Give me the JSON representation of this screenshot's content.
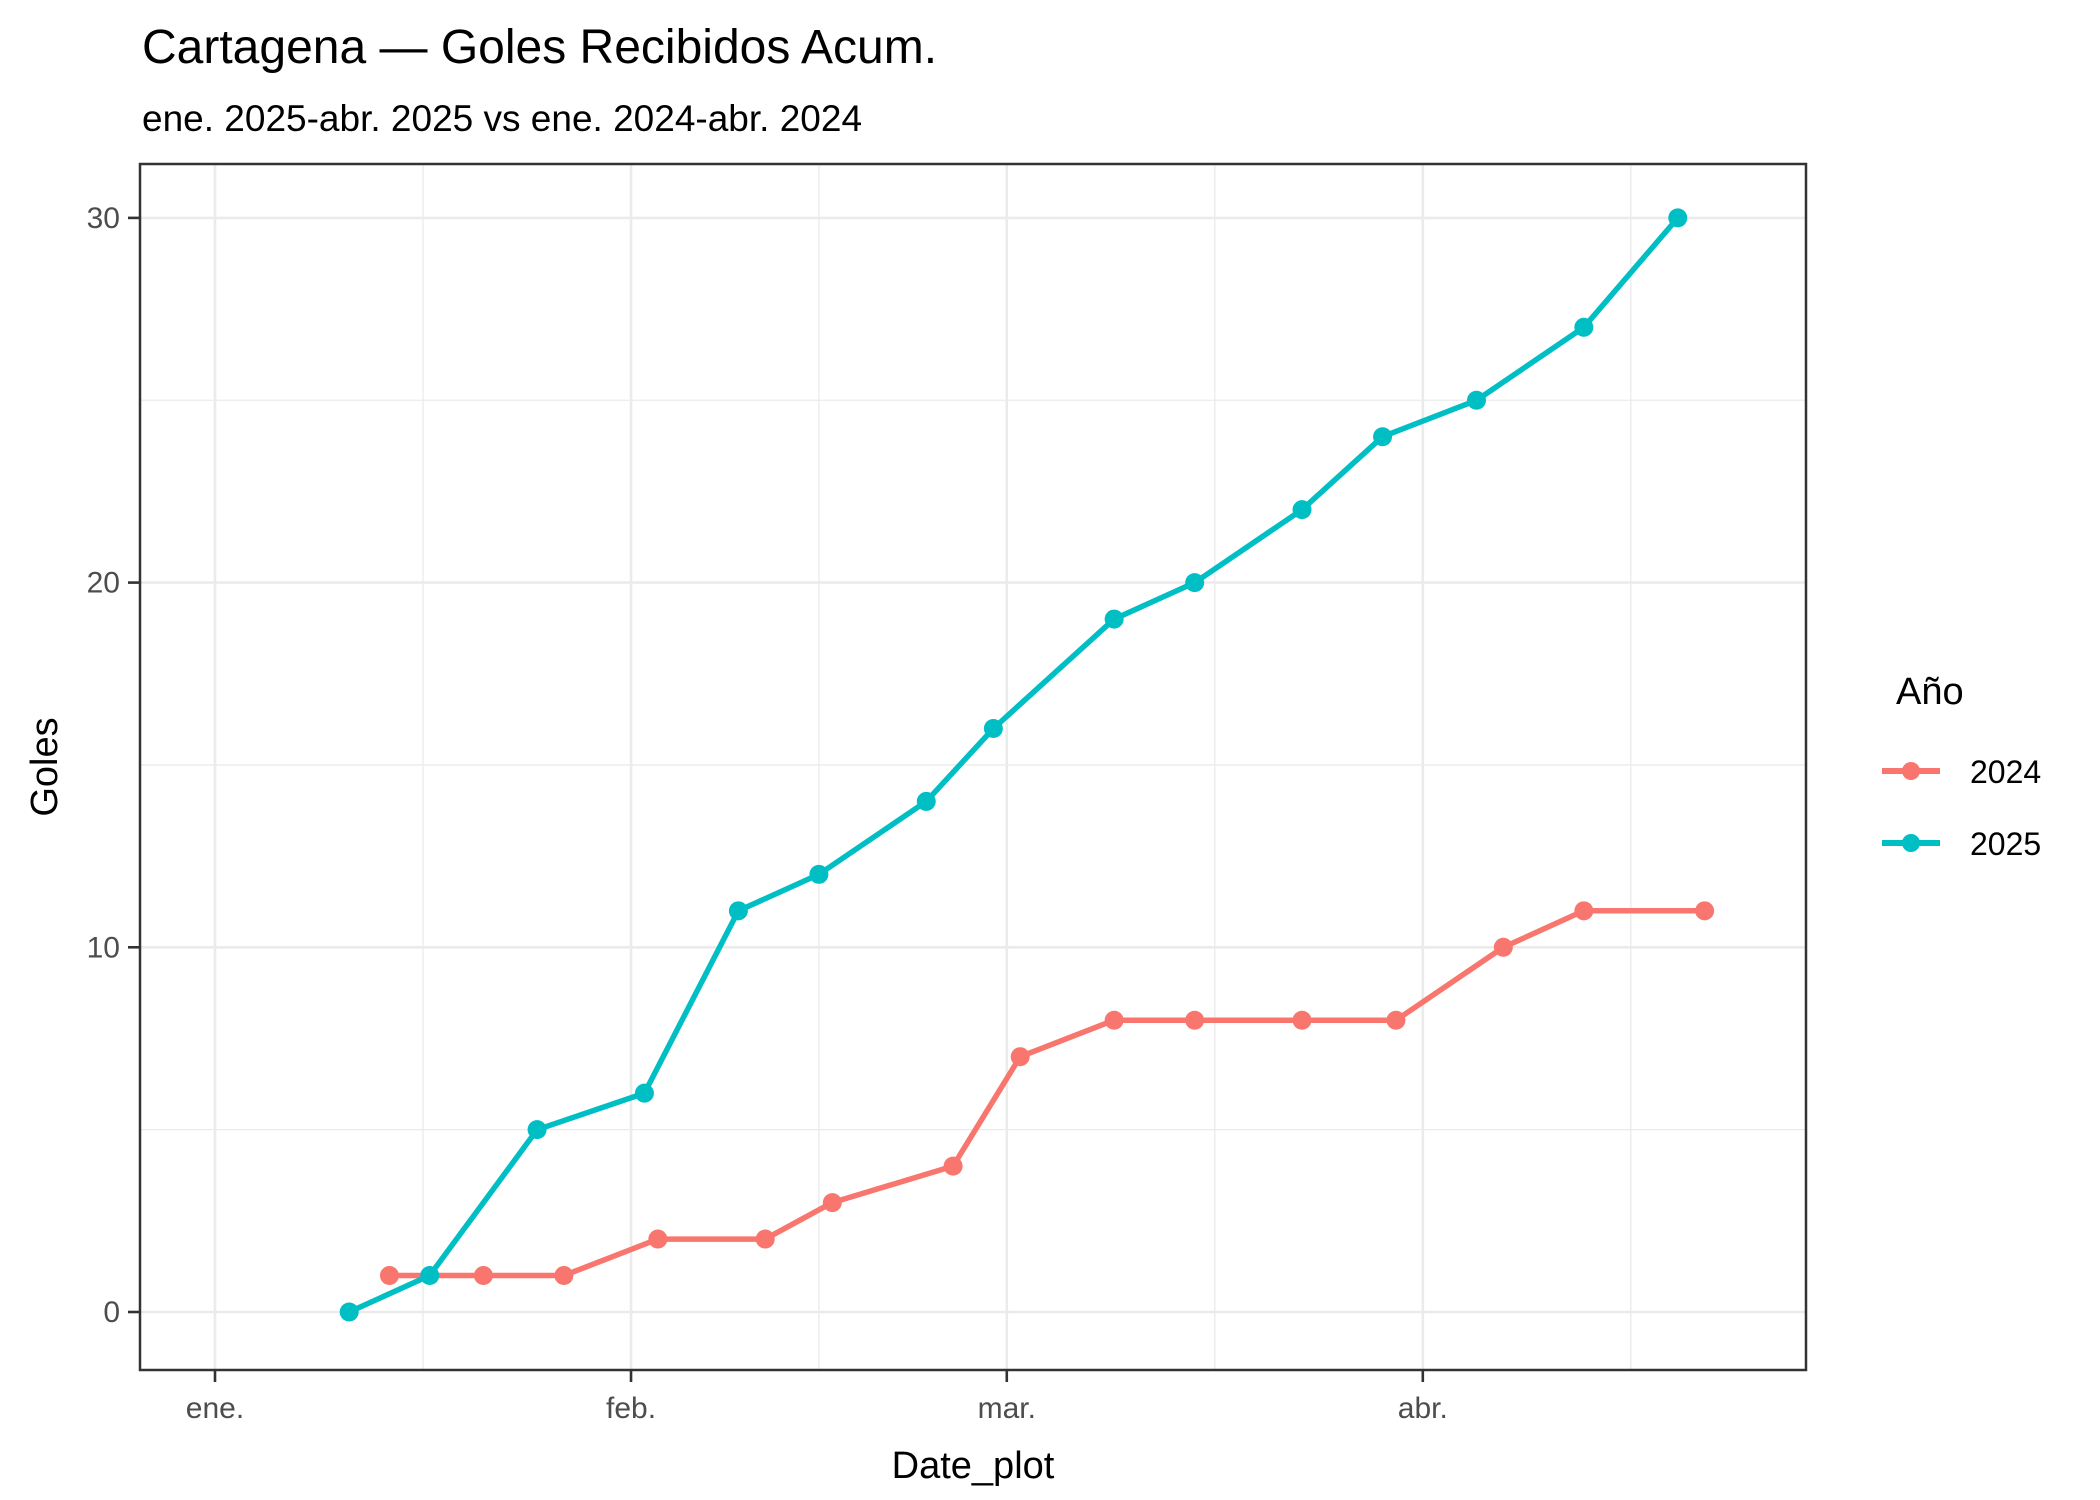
{
  "chart_data": {
    "type": "line",
    "title": "Cartagena — Goles Recibidos Acum.",
    "subtitle": "ene. 2025-abr. 2025 vs ene. 2024-abr. 2024",
    "xlabel": "Date_plot",
    "ylabel": "Goles",
    "x_ticks": [
      {
        "label": "ene.",
        "date": "01-01"
      },
      {
        "label": "feb.",
        "date": "02-01"
      },
      {
        "label": "mar.",
        "date": "03-01"
      },
      {
        "label": "abr.",
        "date": "04-01"
      }
    ],
    "y_ticks": [
      0,
      10,
      20,
      30
    ],
    "ylim": [
      -1.5,
      31.5
    ],
    "xlim_days": [
      -5.5,
      118
    ],
    "grid": true,
    "legend": {
      "title": "Año",
      "position": "right",
      "entries": [
        "2024",
        "2025"
      ]
    },
    "series": [
      {
        "name": "2024",
        "color": "#F8766D",
        "points": [
          {
            "date": "01-14",
            "value": 1
          },
          {
            "date": "01-21",
            "value": 1
          },
          {
            "date": "01-27",
            "value": 1
          },
          {
            "date": "02-03",
            "value": 2
          },
          {
            "date": "02-11",
            "value": 2
          },
          {
            "date": "02-16",
            "value": 3
          },
          {
            "date": "02-25",
            "value": 4
          },
          {
            "date": "03-02",
            "value": 7
          },
          {
            "date": "03-09",
            "value": 8
          },
          {
            "date": "03-15",
            "value": 8
          },
          {
            "date": "03-23",
            "value": 8
          },
          {
            "date": "03-30",
            "value": 8
          },
          {
            "date": "04-07",
            "value": 10
          },
          {
            "date": "04-13",
            "value": 11
          },
          {
            "date": "04-22",
            "value": 11
          }
        ]
      },
      {
        "name": "2025",
        "color": "#00BFC4",
        "points": [
          {
            "date": "01-11",
            "value": 0
          },
          {
            "date": "01-17",
            "value": 1
          },
          {
            "date": "01-25",
            "value": 5
          },
          {
            "date": "02-02",
            "value": 6
          },
          {
            "date": "02-09",
            "value": 11
          },
          {
            "date": "02-15",
            "value": 12
          },
          {
            "date": "02-23",
            "value": 14
          },
          {
            "date": "02-28",
            "value": 16
          },
          {
            "date": "03-09",
            "value": 19
          },
          {
            "date": "03-15",
            "value": 20
          },
          {
            "date": "03-23",
            "value": 22
          },
          {
            "date": "03-29",
            "value": 24
          },
          {
            "date": "04-05",
            "value": 25
          },
          {
            "date": "04-13",
            "value": 27
          },
          {
            "date": "04-20",
            "value": 30
          }
        ]
      }
    ]
  }
}
